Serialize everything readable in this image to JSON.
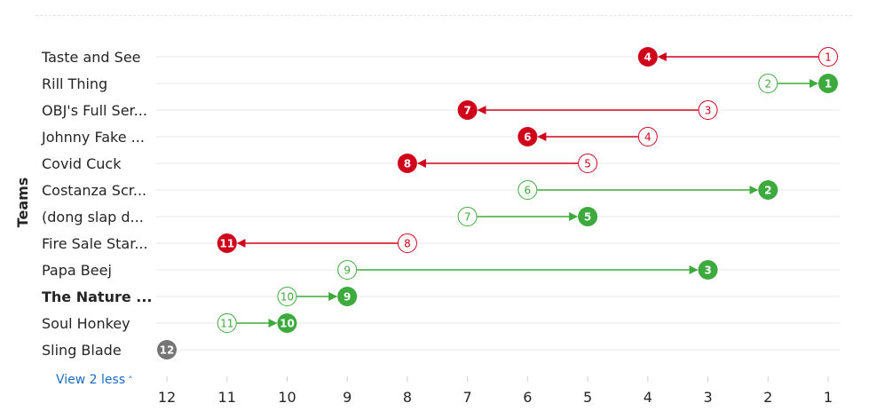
{
  "chart_data": {
    "type": "dumbbell",
    "ylabel": "Teams",
    "xlim": [
      12,
      1
    ],
    "x_ticks": [
      12,
      11,
      10,
      9,
      8,
      7,
      6,
      5,
      4,
      3,
      2,
      1
    ],
    "categories": [
      "Taste and See",
      "Rill Thing",
      "OBJ's Full Ser...",
      "Johnny Fake ...",
      "Covid Cuck",
      "Costanza Scr...",
      "(dong slap d...",
      "Fire Sale Star...",
      "Papa Beej",
      "The Nature ...",
      "Soul Honkey",
      "Sling Blade"
    ],
    "highlighted_category": "The Nature ...",
    "rows": [
      {
        "team": "Taste and See",
        "from": 1,
        "to": 4,
        "change": "down"
      },
      {
        "team": "Rill Thing",
        "from": 2,
        "to": 1,
        "change": "up"
      },
      {
        "team": "OBJ's Full Ser...",
        "from": 3,
        "to": 7,
        "change": "down"
      },
      {
        "team": "Johnny Fake ...",
        "from": 4,
        "to": 6,
        "change": "down"
      },
      {
        "team": "Covid Cuck",
        "from": 5,
        "to": 8,
        "change": "down"
      },
      {
        "team": "Costanza Scr...",
        "from": 6,
        "to": 2,
        "change": "up"
      },
      {
        "team": "(dong slap d...",
        "from": 7,
        "to": 5,
        "change": "up"
      },
      {
        "team": "Fire Sale Star...",
        "from": 8,
        "to": 11,
        "change": "down"
      },
      {
        "team": "Papa Beej",
        "from": 9,
        "to": 3,
        "change": "up"
      },
      {
        "team": "The Nature ...",
        "from": 10,
        "to": 9,
        "change": "up"
      },
      {
        "team": "Soul Honkey",
        "from": 11,
        "to": 10,
        "change": "up"
      },
      {
        "team": "Sling Blade",
        "from": 12,
        "to": 12,
        "change": "same"
      }
    ],
    "colors": {
      "up": "#3daa3d",
      "down": "#d0021b",
      "same": "#757575",
      "grid": "#e8e8e8",
      "text": "#252525"
    }
  },
  "footer": {
    "view_less_label": "View 2 less"
  },
  "icons": {
    "view_less_chevron": "chevron-up-icon"
  }
}
